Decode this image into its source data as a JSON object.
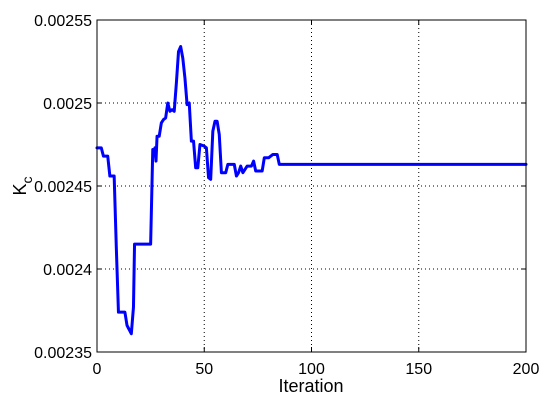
{
  "chart_data": {
    "type": "line",
    "title": "",
    "xlabel": "Iteration",
    "ylabel": {
      "main": "K",
      "subscript": "c"
    },
    "xlim": [
      0,
      200
    ],
    "ylim": [
      0.00235,
      0.00255
    ],
    "xticks": [
      0,
      50,
      100,
      150,
      200
    ],
    "xtick_labels": [
      "0",
      "50",
      "100",
      "150",
      "200"
    ],
    "yticks": [
      0.00235,
      0.0024,
      0.00245,
      0.0025,
      0.00255
    ],
    "ytick_labels": [
      "0.00235",
      "0.0024",
      "0.00245",
      "0.0025",
      "0.00255"
    ],
    "grid": true,
    "series": [
      {
        "color": "#0000ff",
        "points": [
          [
            0,
            0.002473
          ],
          [
            2,
            0.002473
          ],
          [
            3,
            0.002468
          ],
          [
            5,
            0.002468
          ],
          [
            6,
            0.002456
          ],
          [
            8,
            0.002456
          ],
          [
            9,
            0.002413
          ],
          [
            10,
            0.002374
          ],
          [
            13,
            0.002374
          ],
          [
            14,
            0.002366
          ],
          [
            16,
            0.002361
          ],
          [
            17,
            0.002377
          ],
          [
            17.5,
            0.002415
          ],
          [
            20,
            0.002415
          ],
          [
            25,
            0.002415
          ],
          [
            26,
            0.002472
          ],
          [
            26.5,
            0.002469
          ],
          [
            27,
            0.002473
          ],
          [
            27.5,
            0.002465
          ],
          [
            28,
            0.00248
          ],
          [
            29,
            0.00248
          ],
          [
            30,
            0.002488
          ],
          [
            31,
            0.00249
          ],
          [
            32,
            0.002491
          ],
          [
            33,
            0.0025
          ],
          [
            34,
            0.002495
          ],
          [
            35,
            0.002496
          ],
          [
            36,
            0.002495
          ],
          [
            37,
            0.002512
          ],
          [
            38,
            0.002531
          ],
          [
            39,
            0.002534
          ],
          [
            40,
            0.002527
          ],
          [
            41,
            0.002515
          ],
          [
            42,
            0.002499
          ],
          [
            43,
            0.0025
          ],
          [
            44,
            0.002477
          ],
          [
            45,
            0.002477
          ],
          [
            46,
            0.002461
          ],
          [
            47,
            0.002461
          ],
          [
            48,
            0.002475
          ],
          [
            50,
            0.002474
          ],
          [
            51,
            0.002473
          ],
          [
            52,
            0.002455
          ],
          [
            53,
            0.002454
          ],
          [
            54,
            0.002483
          ],
          [
            55,
            0.002489
          ],
          [
            56,
            0.002489
          ],
          [
            57,
            0.002481
          ],
          [
            58,
            0.002458
          ],
          [
            60,
            0.002458
          ],
          [
            61,
            0.002463
          ],
          [
            64,
            0.002463
          ],
          [
            65,
            0.002456
          ],
          [
            66,
            0.002458
          ],
          [
            67,
            0.002462
          ],
          [
            68,
            0.002458
          ],
          [
            70,
            0.002462
          ],
          [
            72,
            0.002462
          ],
          [
            73,
            0.002465
          ],
          [
            74,
            0.002459
          ],
          [
            77,
            0.002459
          ],
          [
            78,
            0.002467
          ],
          [
            80,
            0.002467
          ],
          [
            82,
            0.002469
          ],
          [
            84,
            0.002469
          ],
          [
            85,
            0.002463
          ],
          [
            200,
            0.002463
          ]
        ]
      }
    ]
  }
}
